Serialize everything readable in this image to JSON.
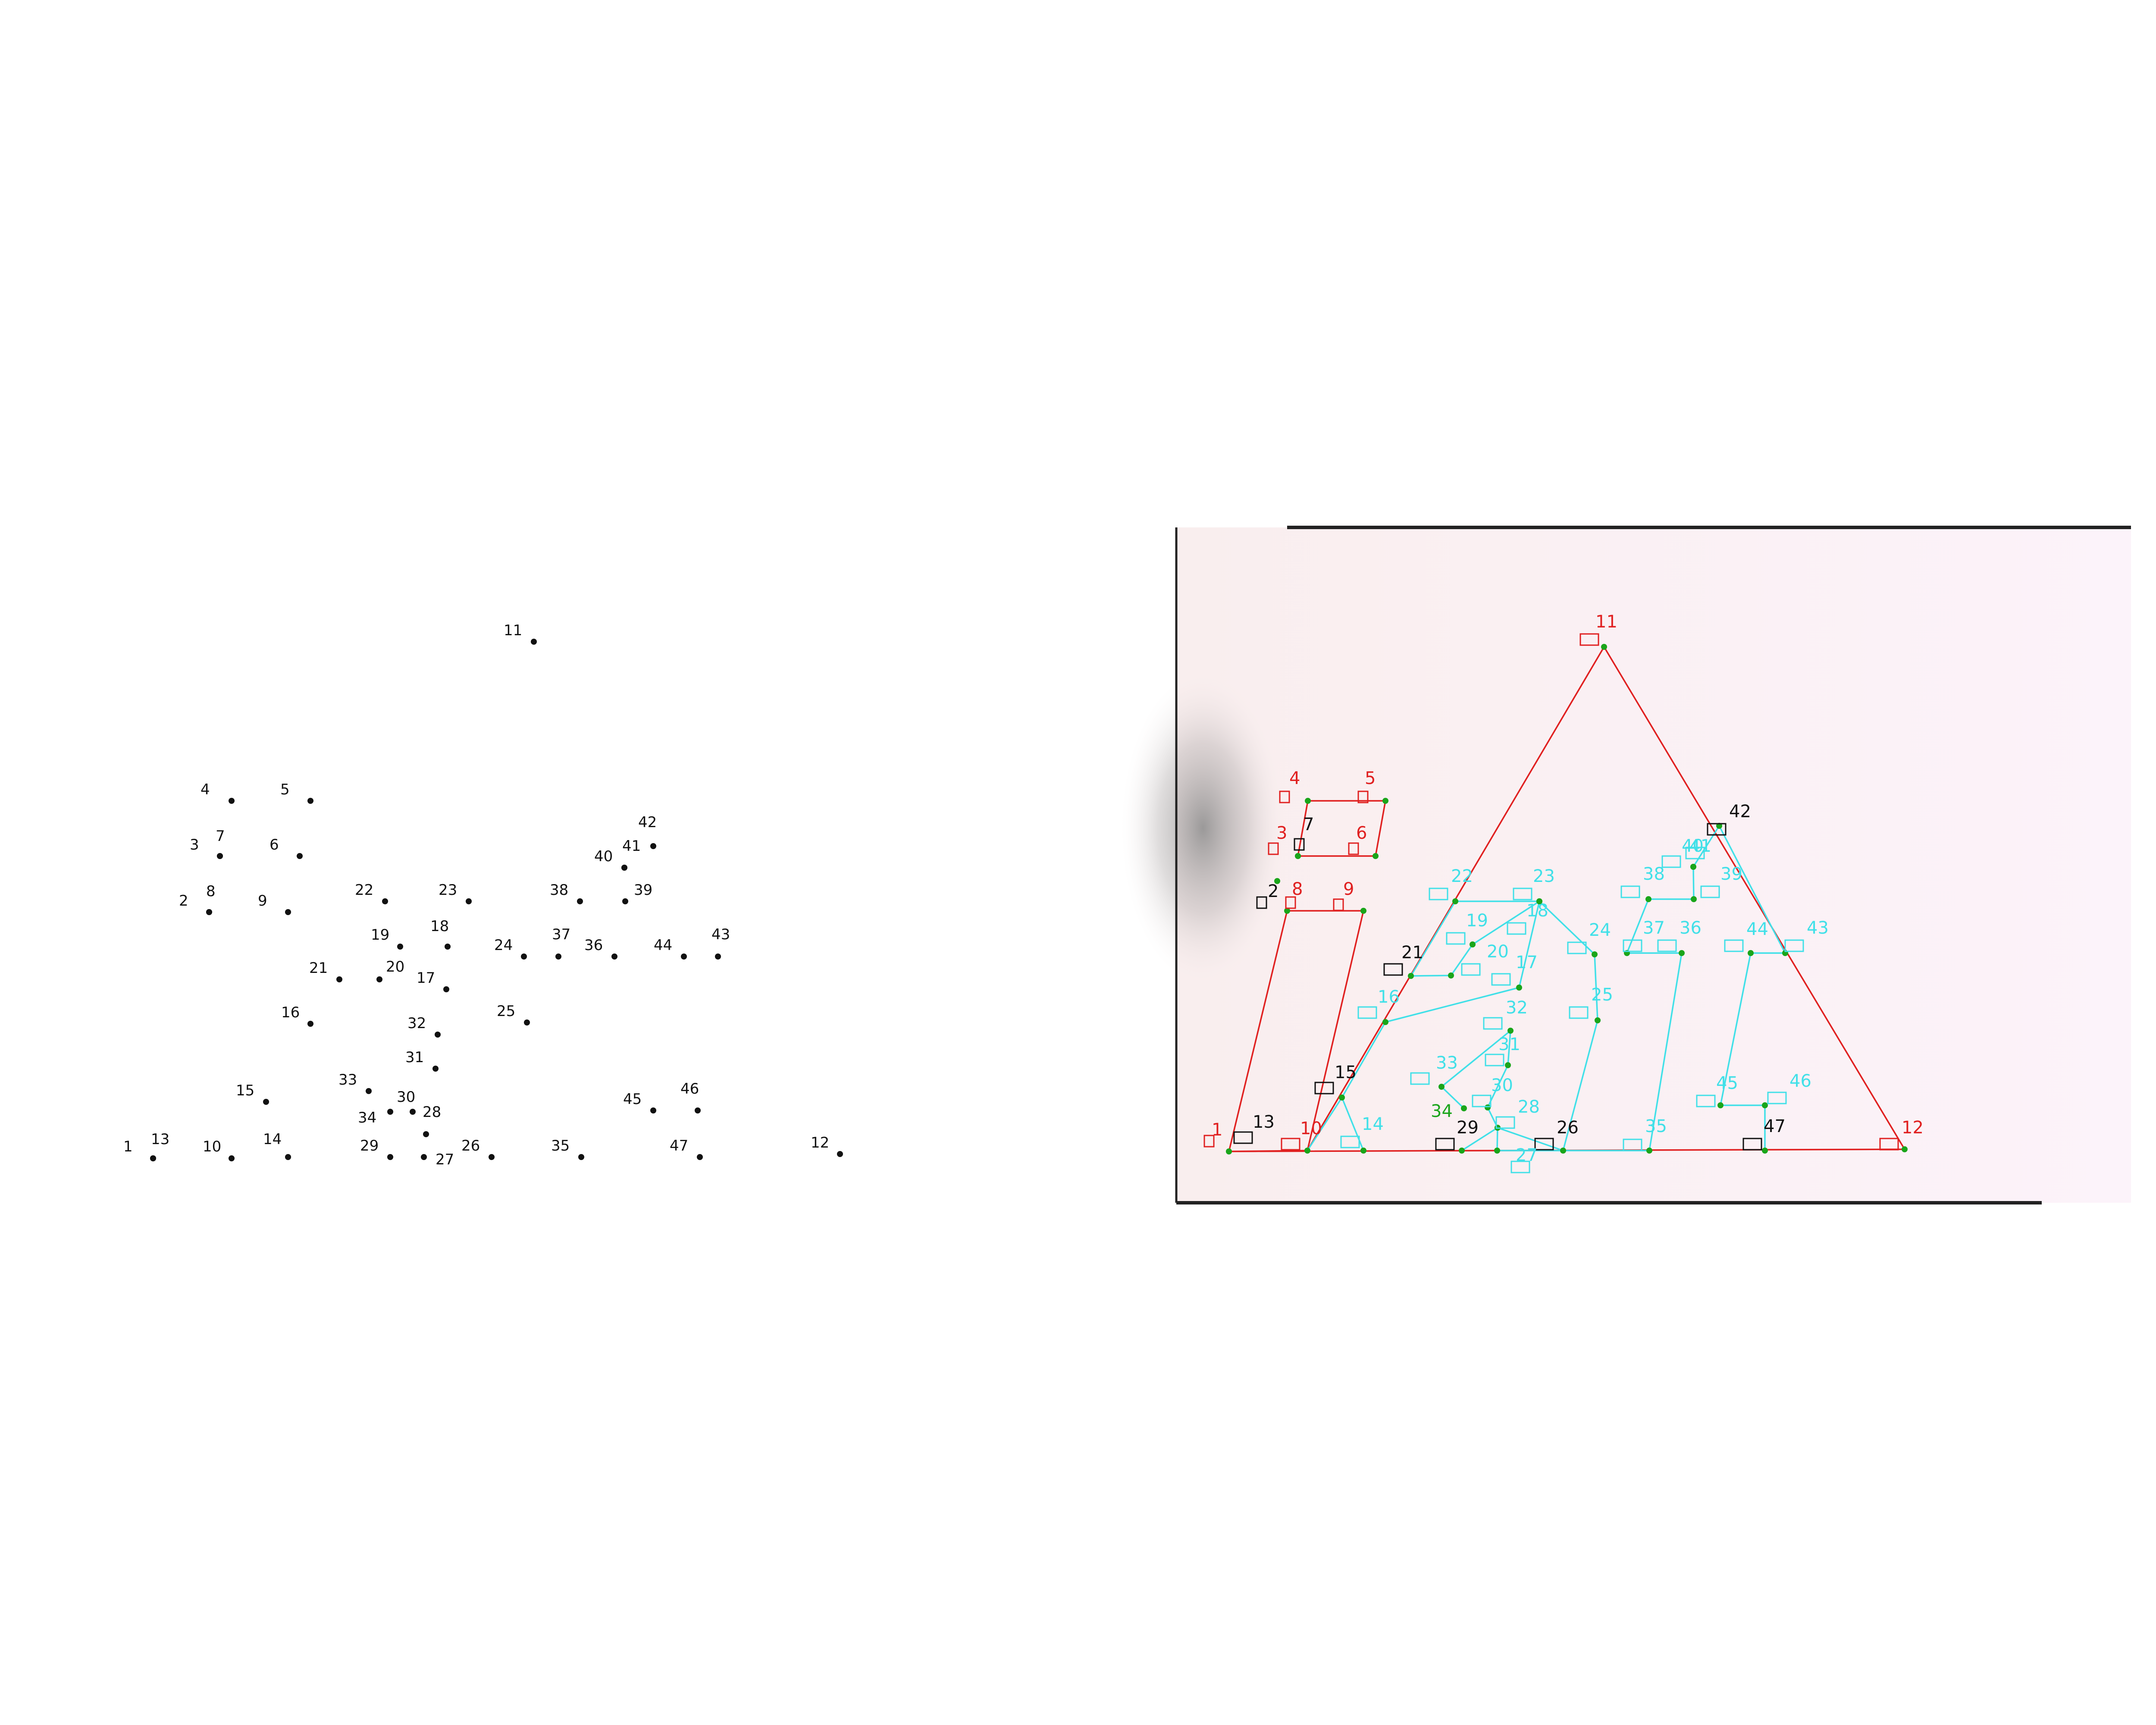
{
  "left_panel": {
    "points": [
      {
        "id": "1",
        "label": "1"
      },
      {
        "id": "2",
        "label": "2"
      },
      {
        "id": "3",
        "label": "3"
      },
      {
        "id": "4",
        "label": "4"
      },
      {
        "id": "5",
        "label": "5"
      },
      {
        "id": "6",
        "label": "6"
      },
      {
        "id": "7",
        "label": "7"
      },
      {
        "id": "8",
        "label": "8"
      },
      {
        "id": "9",
        "label": "9"
      },
      {
        "id": "10",
        "label": "10"
      },
      {
        "id": "11",
        "label": "11"
      },
      {
        "id": "12",
        "label": "12"
      },
      {
        "id": "13",
        "label": "13"
      },
      {
        "id": "14",
        "label": "14"
      },
      {
        "id": "15",
        "label": "15"
      },
      {
        "id": "16",
        "label": "16"
      },
      {
        "id": "17",
        "label": "17"
      },
      {
        "id": "18",
        "label": "18"
      },
      {
        "id": "19",
        "label": "19"
      },
      {
        "id": "20",
        "label": "20"
      },
      {
        "id": "21",
        "label": "21"
      },
      {
        "id": "22",
        "label": "22"
      },
      {
        "id": "23",
        "label": "23"
      },
      {
        "id": "24",
        "label": "24"
      },
      {
        "id": "25",
        "label": "25"
      },
      {
        "id": "26",
        "label": "26"
      },
      {
        "id": "27",
        "label": "27"
      },
      {
        "id": "28",
        "label": "28"
      },
      {
        "id": "29",
        "label": "29"
      },
      {
        "id": "30",
        "label": "30"
      },
      {
        "id": "31",
        "label": "31"
      },
      {
        "id": "32",
        "label": "32"
      },
      {
        "id": "33",
        "label": "33"
      },
      {
        "id": "34",
        "label": "34"
      },
      {
        "id": "35",
        "label": "35"
      },
      {
        "id": "36",
        "label": "36"
      },
      {
        "id": "37",
        "label": "37"
      },
      {
        "id": "38",
        "label": "38"
      },
      {
        "id": "39",
        "label": "39"
      },
      {
        "id": "40",
        "label": "40"
      },
      {
        "id": "41",
        "label": "41"
      },
      {
        "id": "42",
        "label": "42"
      },
      {
        "id": "43",
        "label": "43"
      },
      {
        "id": "44",
        "label": "44"
      },
      {
        "id": "45",
        "label": "45"
      },
      {
        "id": "46",
        "label": "46"
      },
      {
        "id": "47",
        "label": "47"
      }
    ]
  },
  "right_panel": {
    "colors": {
      "primary": "#e02020",
      "secondary": "#40e0e8",
      "anchor": "#111111",
      "vertex": "#1aa51a",
      "background_left": "#f9eeee",
      "background_right": "#fcf3fa",
      "frame": "#222222"
    },
    "points": [
      {
        "id": "1",
        "label": "1",
        "group": "primary"
      },
      {
        "id": "2",
        "label": "2",
        "group": "anchor"
      },
      {
        "id": "3",
        "label": "3",
        "group": "primary"
      },
      {
        "id": "4",
        "label": "4",
        "group": "primary"
      },
      {
        "id": "5",
        "label": "5",
        "group": "primary"
      },
      {
        "id": "6",
        "label": "6",
        "group": "primary"
      },
      {
        "id": "7",
        "label": "7",
        "group": "anchor"
      },
      {
        "id": "8",
        "label": "8",
        "group": "primary"
      },
      {
        "id": "9",
        "label": "9",
        "group": "primary"
      },
      {
        "id": "10",
        "label": "10",
        "group": "primary"
      },
      {
        "id": "11",
        "label": "11",
        "group": "primary"
      },
      {
        "id": "12",
        "label": "12",
        "group": "primary"
      },
      {
        "id": "13",
        "label": "13",
        "group": "anchor"
      },
      {
        "id": "14",
        "label": "14",
        "group": "secondary"
      },
      {
        "id": "15",
        "label": "15",
        "group": "anchor"
      },
      {
        "id": "16",
        "label": "16",
        "group": "secondary"
      },
      {
        "id": "17",
        "label": "17",
        "group": "secondary"
      },
      {
        "id": "18",
        "label": "18",
        "group": "secondary"
      },
      {
        "id": "19",
        "label": "19",
        "group": "secondary"
      },
      {
        "id": "20",
        "label": "20",
        "group": "secondary"
      },
      {
        "id": "21",
        "label": "21",
        "group": "anchor"
      },
      {
        "id": "22",
        "label": "22",
        "group": "secondary"
      },
      {
        "id": "23",
        "label": "23",
        "group": "secondary"
      },
      {
        "id": "24",
        "label": "24",
        "group": "secondary"
      },
      {
        "id": "25",
        "label": "25",
        "group": "secondary"
      },
      {
        "id": "26",
        "label": "26",
        "group": "anchor"
      },
      {
        "id": "27",
        "label": "27",
        "group": "secondary"
      },
      {
        "id": "28",
        "label": "28",
        "group": "secondary"
      },
      {
        "id": "29",
        "label": "29",
        "group": "anchor"
      },
      {
        "id": "30",
        "label": "30",
        "group": "secondary"
      },
      {
        "id": "31",
        "label": "31",
        "group": "secondary"
      },
      {
        "id": "32",
        "label": "32",
        "group": "secondary"
      },
      {
        "id": "33",
        "label": "33",
        "group": "secondary"
      },
      {
        "id": "34",
        "label": "34",
        "group": "vertex"
      },
      {
        "id": "35",
        "label": "35",
        "group": "secondary"
      },
      {
        "id": "36",
        "label": "36",
        "group": "secondary"
      },
      {
        "id": "37",
        "label": "37",
        "group": "secondary"
      },
      {
        "id": "38",
        "label": "38",
        "group": "secondary"
      },
      {
        "id": "39",
        "label": "39",
        "group": "secondary"
      },
      {
        "id": "40",
        "label": "40",
        "group": "secondary"
      },
      {
        "id": "41",
        "label": "41",
        "group": "secondary"
      },
      {
        "id": "42",
        "label": "42",
        "group": "anchor"
      },
      {
        "id": "43",
        "label": "43",
        "group": "secondary"
      },
      {
        "id": "44",
        "label": "44",
        "group": "secondary"
      },
      {
        "id": "45",
        "label": "45",
        "group": "secondary"
      },
      {
        "id": "46",
        "label": "46",
        "group": "secondary"
      },
      {
        "id": "47",
        "label": "47",
        "group": "anchor"
      }
    ],
    "polylines": [
      {
        "group": "primary",
        "path": [
          "10",
          "11",
          "12",
          "1",
          "10"
        ],
        "closed": false
      },
      {
        "group": "primary",
        "path": [
          "4",
          "5",
          "6",
          "3"
        ],
        "closed": true
      },
      {
        "group": "primary",
        "path": [
          "1",
          "8",
          "9",
          "10"
        ],
        "closed": false
      },
      {
        "group": "secondary",
        "path": [
          "10",
          "15",
          "14"
        ],
        "closed": false
      },
      {
        "group": "secondary",
        "path": [
          "15",
          "16",
          "17",
          "18",
          "19",
          "20",
          "21"
        ],
        "closed": false
      },
      {
        "group": "secondary",
        "path": [
          "21",
          "22",
          "23",
          "24",
          "25",
          "26"
        ],
        "closed": false
      },
      {
        "group": "secondary",
        "path": [
          "26",
          "27",
          "28",
          "29"
        ],
        "closed": false
      },
      {
        "group": "secondary",
        "path": [
          "26",
          "28",
          "30",
          "31",
          "32",
          "33",
          "34"
        ],
        "closed": false
      },
      {
        "group": "secondary",
        "path": [
          "26",
          "35",
          "36",
          "37",
          "38",
          "39",
          "40",
          "41",
          "42"
        ],
        "closed": false
      },
      {
        "group": "secondary",
        "path": [
          "42",
          "43",
          "44",
          "45",
          "46",
          "47"
        ],
        "closed": false
      }
    ]
  }
}
